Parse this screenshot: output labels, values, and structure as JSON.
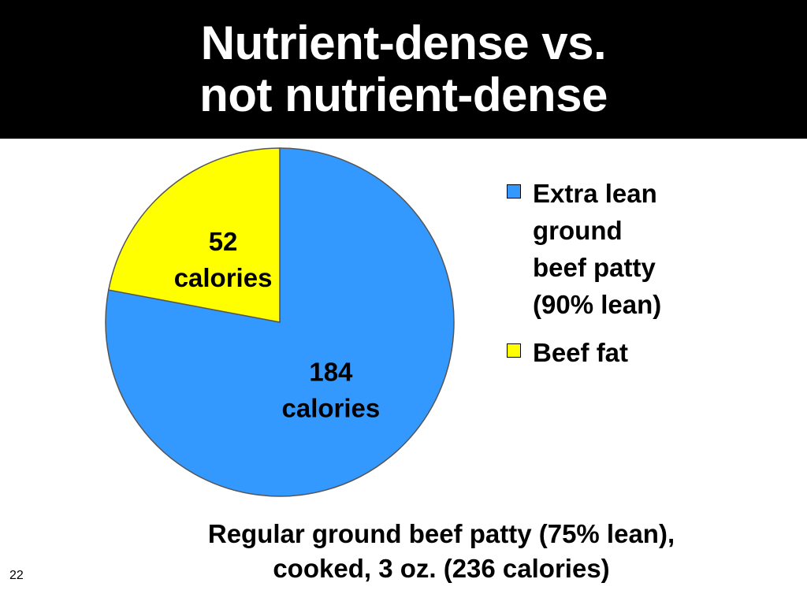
{
  "slide": {
    "title_lines": [
      "Nutrient-dense vs.",
      "not nutrient-dense"
    ],
    "caption_lines": [
      "Regular ground beef patty (75% lean),",
      "cooked, 3 oz. (236 calories)"
    ],
    "slide_number": "22"
  },
  "chart_data": {
    "type": "pie",
    "title": "",
    "slices": [
      {
        "name": "Extra lean\nground\nbeef patty\n(90% lean)",
        "value": 184,
        "label_lines": [
          "184",
          "calories"
        ],
        "color": "#3399ff"
      },
      {
        "name": "Beef fat",
        "value": 52,
        "label_lines": [
          "52",
          "calories"
        ],
        "color": "#ffff00"
      }
    ],
    "total": 236,
    "legend_position": "right"
  },
  "colors": {
    "title_background": "#000000",
    "title_text": "#ffffff",
    "slice_outline": "#555555"
  }
}
